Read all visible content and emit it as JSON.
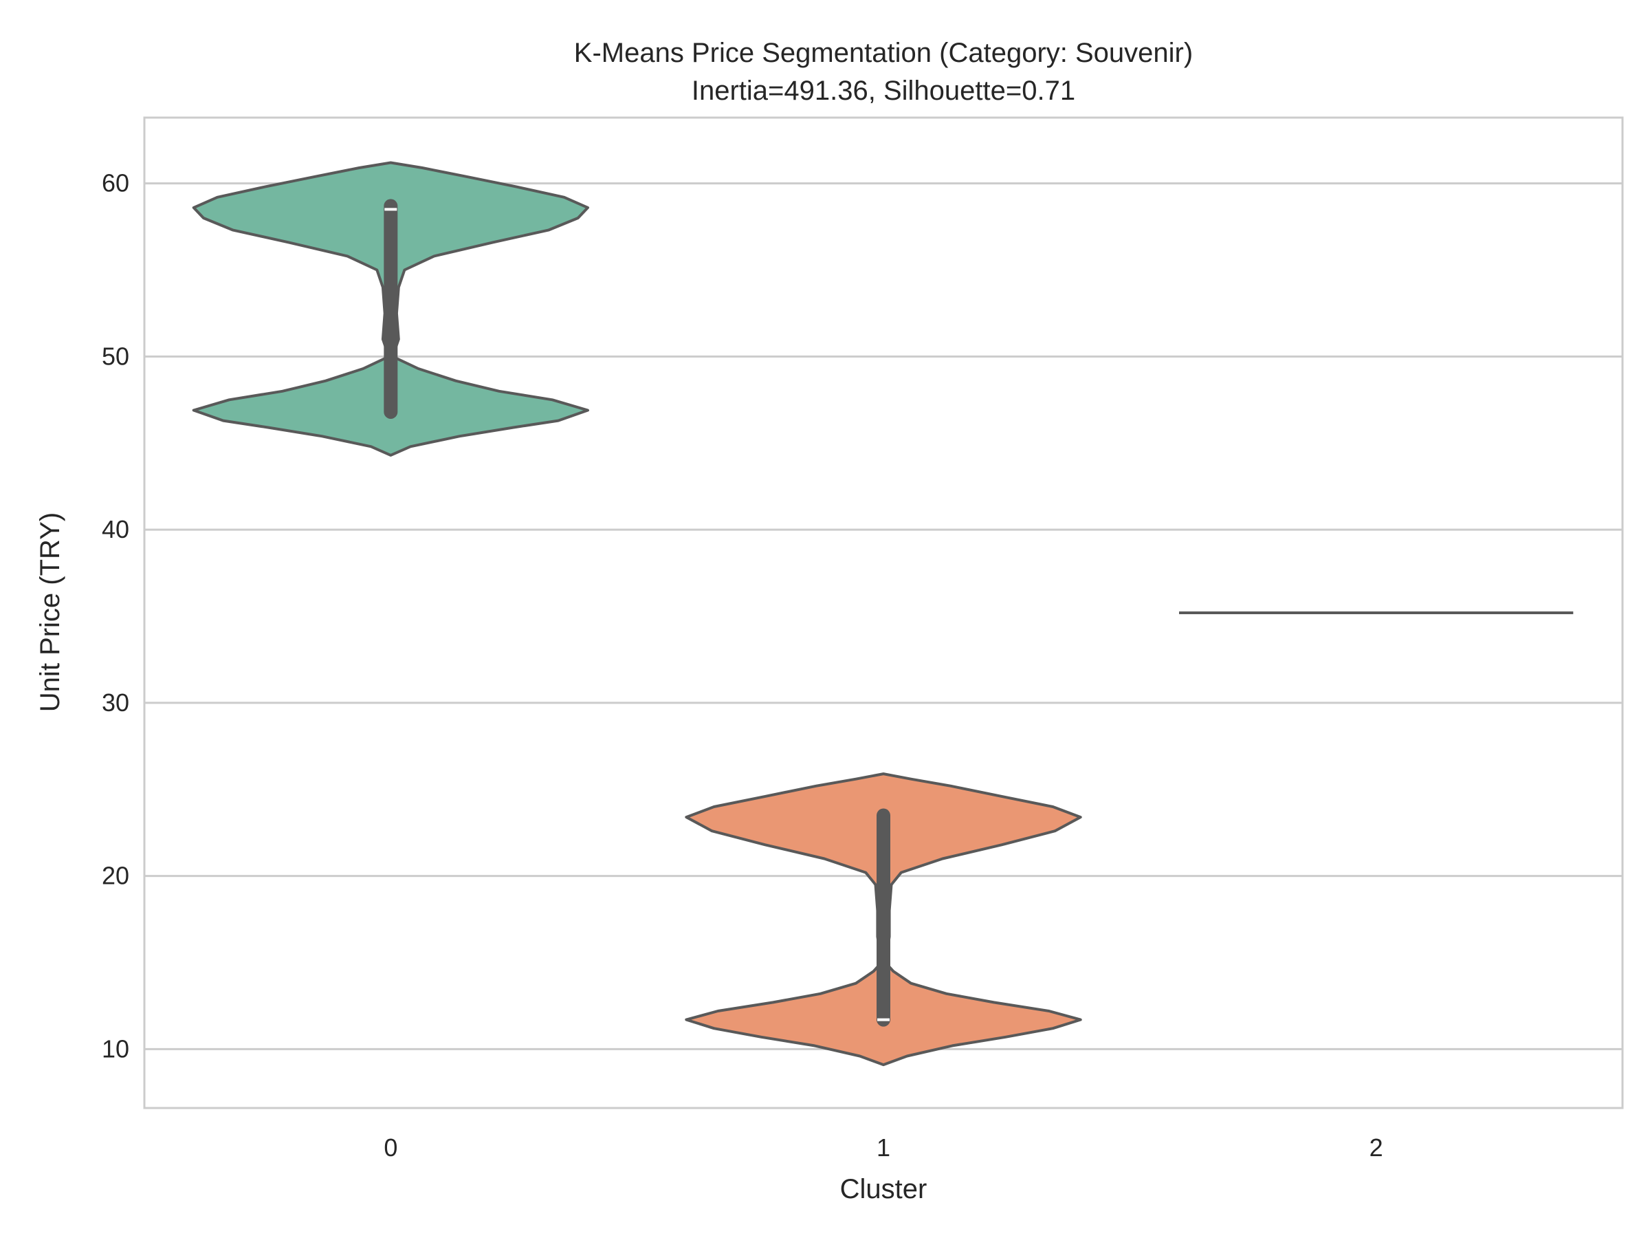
{
  "chart_data": {
    "type": "violin",
    "title": "K-Means Price Segmentation (Category: Souvenir)",
    "subtitle": "Inertia=491.36, Silhouette=0.71",
    "xlabel": "Cluster",
    "ylabel": "Unit Price (TRY)",
    "categories": [
      "0",
      "1",
      "2"
    ],
    "ylim": [
      6.6,
      63.8
    ],
    "yticks": [
      10,
      20,
      30,
      40,
      50,
      60
    ],
    "grid": "horizontal",
    "legend": "none",
    "clusters": [
      {
        "category": "0",
        "color": "#74b7a0",
        "min": 44.3,
        "max": 61.2,
        "median": 58.5,
        "q1": 46.8,
        "q3": 58.7,
        "whisker_low": 46.8,
        "whisker_high": 58.7,
        "density_profile": [
          [
            44.3,
            0.0
          ],
          [
            44.8,
            0.1
          ],
          [
            45.4,
            0.35
          ],
          [
            45.9,
            0.62
          ],
          [
            46.3,
            0.85
          ],
          [
            46.9,
            1.0
          ],
          [
            47.5,
            0.82
          ],
          [
            48.0,
            0.55
          ],
          [
            48.6,
            0.33
          ],
          [
            49.3,
            0.14
          ],
          [
            50.0,
            0.01
          ],
          [
            51.0,
            0.04
          ],
          [
            52.5,
            0.03
          ],
          [
            54.0,
            0.04
          ],
          [
            55.0,
            0.07
          ],
          [
            55.8,
            0.22
          ],
          [
            56.6,
            0.52
          ],
          [
            57.3,
            0.8
          ],
          [
            58.0,
            0.95
          ],
          [
            58.6,
            1.0
          ],
          [
            59.2,
            0.88
          ],
          [
            59.8,
            0.64
          ],
          [
            60.4,
            0.38
          ],
          [
            60.9,
            0.16
          ],
          [
            61.2,
            0.0
          ]
        ]
      },
      {
        "category": "1",
        "color": "#ea9773",
        "min": 9.1,
        "max": 25.9,
        "median": 11.7,
        "q1": 11.7,
        "q3": 23.5,
        "whisker_low": 11.7,
        "whisker_high": 23.5,
        "density_profile": [
          [
            9.1,
            0.0
          ],
          [
            9.6,
            0.12
          ],
          [
            10.2,
            0.35
          ],
          [
            10.7,
            0.62
          ],
          [
            11.2,
            0.86
          ],
          [
            11.7,
            1.0
          ],
          [
            12.2,
            0.84
          ],
          [
            12.7,
            0.56
          ],
          [
            13.2,
            0.32
          ],
          [
            13.8,
            0.14
          ],
          [
            14.5,
            0.05
          ],
          [
            15.0,
            0.01
          ],
          [
            16.5,
            0.03
          ],
          [
            18.0,
            0.03
          ],
          [
            19.5,
            0.04
          ],
          [
            20.2,
            0.09
          ],
          [
            21.0,
            0.3
          ],
          [
            21.8,
            0.6
          ],
          [
            22.6,
            0.87
          ],
          [
            23.4,
            1.0
          ],
          [
            24.0,
            0.86
          ],
          [
            24.6,
            0.6
          ],
          [
            25.2,
            0.34
          ],
          [
            25.6,
            0.14
          ],
          [
            25.9,
            0.0
          ]
        ]
      },
      {
        "category": "2",
        "color": "#8da0cb",
        "value": 35.2,
        "degenerate": true
      }
    ]
  }
}
